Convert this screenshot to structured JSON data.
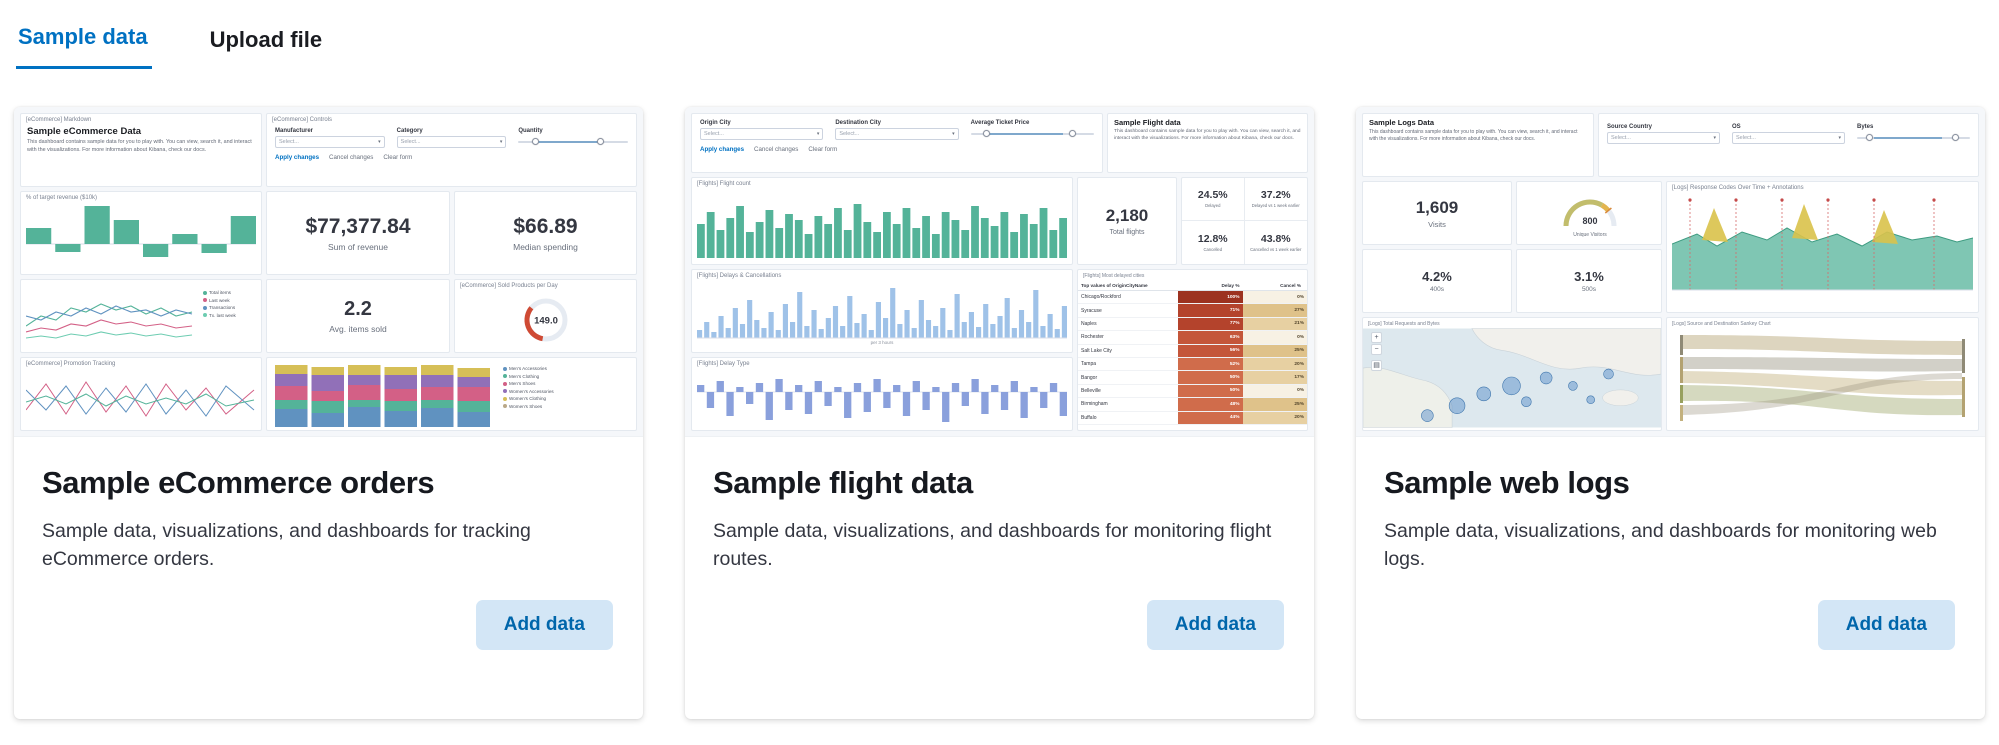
{
  "colors": {
    "accent_blue": "#0071c2",
    "button_bg": "#d3e6f6",
    "chart_green": "#54b399",
    "chart_blue": "#6092c0",
    "chart_pink": "#d36086",
    "chart_purple": "#9170b8",
    "chart_gold": "#d6bf57",
    "chart_light_blue": "#9fc2e8",
    "chart_periwinkle": "#8aa0dc",
    "gauge_red": "#cf4a34"
  },
  "icons": {
    "caret": "▾",
    "plus": "+",
    "minus": "−",
    "layers": "▤"
  },
  "tabs": [
    {
      "label": "Sample data",
      "active": true
    },
    {
      "label": "Upload file",
      "active": false
    }
  ],
  "cards": [
    {
      "title": "Sample eCommerce orders",
      "description": "Sample data, visualizations, and dashboards for tracking eCommerce orders.",
      "button_label": "Add data"
    },
    {
      "title": "Sample flight data",
      "description": "Sample data, visualizations, and dashboards for monitoring flight routes.",
      "button_label": "Add data"
    },
    {
      "title": "Sample web logs",
      "description": "Sample data, visualizations, and dashboards for monitoring web logs.",
      "button_label": "Add data"
    }
  ],
  "previews": {
    "ecommerce": {
      "markdown_title": "[eCommerce] Markdown",
      "heading": "Sample eCommerce Data",
      "body": "This dashboard contains sample data for you to play with. You can view, search it, and interact with the visualizations. For more information about Kibana, check our docs.",
      "controls_title": "[eCommerce] Controls",
      "labels": {
        "manufacturer": "Manufacturer",
        "category": "Category",
        "quantity": "Quantity"
      },
      "select_placeholder": "Select...",
      "apply": "Apply changes",
      "cancel": "Cancel changes",
      "clear": "Clear form",
      "revenue_title": "% of target revenue ($10k)",
      "revenue_bars": [
        16,
        -8,
        38,
        24,
        -13,
        10,
        -9,
        28
      ],
      "metrics": {
        "sum_revenue": {
          "value": "$77,377.84",
          "label": "Sum of revenue"
        },
        "median_spending": {
          "value": "$66.89",
          "label": "Median spending"
        },
        "avg_items": {
          "value": "2.2",
          "label": "Avg. items sold"
        }
      },
      "line_legend": [
        "Total items",
        "Last week",
        "Transactions",
        "Tx. last week"
      ],
      "gauge_title": "[eCommerce] Sold Products per Day",
      "gauge_value": "149.0",
      "promo_title": "[eCommerce] Promotion Tracking",
      "stacked_legend": [
        "Men's Accessories",
        "Men's Clothing",
        "Men's Shoes",
        "Women's Accessories",
        "Women's Clothing",
        "Women's Shoes"
      ],
      "stacked_bars": [
        [
          18,
          9,
          14,
          12,
          9
        ],
        [
          14,
          12,
          10,
          16,
          8
        ],
        [
          20,
          7,
          15,
          10,
          10
        ],
        [
          16,
          10,
          12,
          14,
          8
        ],
        [
          19,
          8,
          13,
          12,
          10
        ],
        [
          15,
          11,
          14,
          10,
          9
        ]
      ]
    },
    "flights": {
      "heading": "Sample Flight data",
      "body": "This dashboard contains sample data for you to play with. You can view, search it, and interact with the visualizations. For more information about Kibana, check our docs.",
      "labels": {
        "origin": "Origin City",
        "destination": "Destination City",
        "price": "Average Ticket Price"
      },
      "select_placeholder": "Select...",
      "apply": "Apply changes",
      "cancel": "Cancel changes",
      "clear": "Clear form",
      "count_title": "[Flights] Flight count",
      "count_bars": [
        34,
        46,
        28,
        40,
        52,
        26,
        36,
        48,
        30,
        44,
        38,
        24,
        42,
        34,
        50,
        28,
        54,
        36,
        26,
        46,
        34,
        50,
        30,
        42,
        24,
        46,
        38,
        28,
        52,
        40,
        32,
        46,
        26,
        44,
        34,
        50,
        28,
        40
      ],
      "total": {
        "value": "2,180",
        "label": "Total flights"
      },
      "stats": [
        {
          "value": "24.5%",
          "label": "Delayed"
        },
        {
          "value": "37.2%",
          "label": "Delayed vs 1 week earlier"
        },
        {
          "value": "12.8%",
          "label": "Cancelled"
        },
        {
          "value": "43.8%",
          "label": "Cancelled vs 1 week earlier"
        }
      ],
      "delays_title": "[Flights] Delays & Cancellations",
      "delays_axis": "per 3 hours",
      "delays_bars": [
        8,
        16,
        6,
        22,
        10,
        30,
        14,
        38,
        18,
        10,
        26,
        8,
        34,
        16,
        46,
        12,
        28,
        9,
        20,
        32,
        12,
        42,
        15,
        24,
        8,
        36,
        20,
        50,
        14,
        28,
        10,
        38,
        18,
        12,
        30,
        8,
        44,
        16,
        26,
        11,
        34,
        14,
        22,
        40,
        10,
        28,
        16,
        48,
        12,
        24,
        9,
        32
      ],
      "delay_type_title": "[Flights] Delay Type",
      "delay_type_bars": [
        7,
        -16,
        11,
        -24,
        5,
        -12,
        9,
        -28,
        13,
        -18,
        7,
        -22,
        11,
        -14,
        5,
        -26,
        9,
        -20,
        13,
        -16,
        7,
        -24,
        11,
        -18,
        5,
        -30,
        9,
        -14,
        13,
        -22,
        7,
        -18,
        11,
        -26,
        5,
        -16,
        9,
        -24
      ],
      "table": {
        "title": "[Flights] Most delayed cities",
        "columns": [
          "Top values of OriginCityName",
          "Delay %",
          "Cancel %"
        ],
        "rows": [
          {
            "city": "Chicago/Rockford",
            "delay": "100%",
            "cancel": "0%"
          },
          {
            "city": "Syracuse",
            "delay": "71%",
            "cancel": "27%"
          },
          {
            "city": "Naples",
            "delay": "77%",
            "cancel": "21%"
          },
          {
            "city": "Rochester",
            "delay": "63%",
            "cancel": "0%"
          },
          {
            "city": "Salt Lake City",
            "delay": "56%",
            "cancel": "25%"
          },
          {
            "city": "Tampa",
            "delay": "52%",
            "cancel": "20%"
          },
          {
            "city": "Bangor",
            "delay": "50%",
            "cancel": "17%"
          },
          {
            "city": "Belleville",
            "delay": "50%",
            "cancel": "0%"
          },
          {
            "city": "Birmingham",
            "delay": "48%",
            "cancel": "25%"
          },
          {
            "city": "Buffalo",
            "delay": "44%",
            "cancel": "20%"
          }
        ]
      }
    },
    "logs": {
      "heading": "Sample Logs Data",
      "body": "This dashboard contains sample data for you to play with. You can view, search it, and interact with the visualizations. For more information about Kibana, check our docs.",
      "labels": {
        "source_country": "Source Country",
        "os": "OS",
        "bytes": "Bytes"
      },
      "select_placeholder": "Select...",
      "visits": {
        "value": "1,609",
        "label": "Visits"
      },
      "gauge": {
        "value": "800",
        "label": "Unique Visitors"
      },
      "response_title": "[Logs] Response Codes Over Time + Annotations",
      "err400": {
        "value": "4.2%",
        "label": "400s"
      },
      "err500": {
        "value": "3.1%",
        "label": "500s"
      },
      "map_title": "[Logs] Total Requests and Bytes",
      "sankey_title": "[Logs] Source and Destination Sankey Chart"
    }
  }
}
